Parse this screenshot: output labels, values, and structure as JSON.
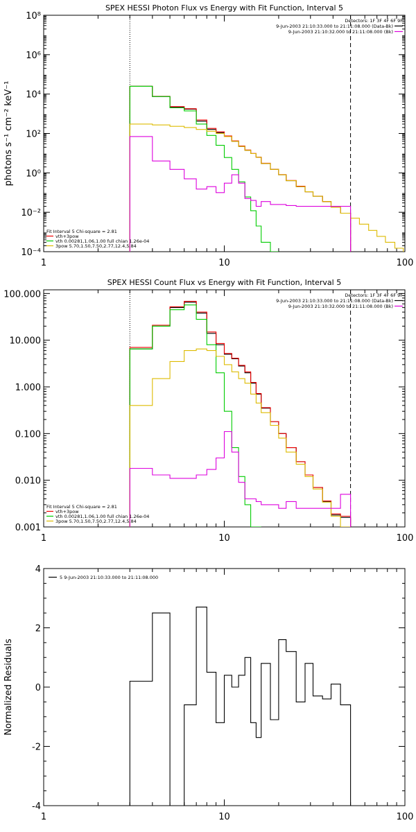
{
  "chart_data": [
    {
      "type": "line",
      "title": "SPEX HESSI Photon Flux vs Energy with Fit Function, Interval 5",
      "xlabel": "",
      "ylabel": "photons s⁻¹ cm⁻² keV⁻¹",
      "xscale": "log",
      "yscale": "log",
      "xlim": [
        1,
        100
      ],
      "ylim": [
        0.0001,
        100000000
      ],
      "xticks": [
        1,
        10,
        100
      ],
      "xtick_labels": [
        "1",
        "10",
        "100"
      ],
      "yticks": [
        0.0001,
        0.01,
        1,
        100,
        10000,
        1000000,
        100000000
      ],
      "ytick_labels": [
        "10⁻⁴",
        "10⁻²",
        "10⁰",
        "10²",
        "10⁴",
        "10⁶",
        "10⁸"
      ],
      "vlines": [
        {
          "x": 3,
          "style": "dotted"
        },
        {
          "x": 50,
          "style": "dashed"
        }
      ],
      "legend_top": {
        "header": "Detectors: 1F 3F 4F 6F 9F",
        "entries": [
          {
            "label": "9-Jun-2003 21:10:33.000 to 21:11:08.000 (Data-Bk)",
            "color": "#000000"
          },
          {
            "label": "9-Jun-2003 21:10:32.000 to 21:11:08.000 (Bk)",
            "color": "#dd00dd"
          }
        ]
      },
      "legend_bottom": {
        "header": "Fit Interval 5   Chi-square = 2.81",
        "entries": [
          {
            "label": "vth+3pow",
            "color": "#ee0000"
          },
          {
            "label": "vth 0.00281,1.06,1.00  full chian 1.26e-04",
            "color": "#00cc00"
          },
          {
            "label": "3pow 5.70,1.50,7.50,2.77,12.4,5.84",
            "color": "#ddbb00"
          }
        ]
      },
      "edges": [
        3,
        4,
        5,
        6,
        7,
        8,
        9,
        10,
        11,
        12,
        13,
        14,
        15,
        16,
        18,
        20,
        22,
        25,
        28,
        31,
        35,
        39,
        44,
        50,
        56,
        63,
        70,
        78,
        88,
        98
      ],
      "series": [
        {
          "color": "#000000",
          "values": [
            25000,
            7500,
            2200,
            1700,
            420,
            160,
            110,
            70,
            40,
            22,
            14,
            9.5,
            6.2,
            3,
            1.5,
            0.8,
            0.4,
            0.2,
            0.11,
            0.065,
            0.035,
            0.018,
            0.009,
            null,
            null,
            null,
            null,
            null,
            null
          ]
        },
        {
          "color": "#ee0000",
          "values": [
            25000,
            7700,
            2300,
            1800,
            480,
            180,
            120,
            75,
            42,
            23,
            14.5,
            9.7,
            6.3,
            3.1,
            1.5,
            0.82,
            0.41,
            0.21,
            0.11,
            0.066,
            0.035,
            0.018,
            0.009,
            null,
            null,
            null,
            null,
            null,
            null
          ]
        },
        {
          "color": "#00cc00",
          "values": [
            25000,
            7500,
            2000,
            1400,
            300,
            80,
            25,
            6,
            1.5,
            0.35,
            0.06,
            0.012,
            0.002,
            0.0003,
            5e-05,
            null,
            null,
            null,
            null,
            null,
            null,
            null,
            null,
            null,
            null,
            null,
            null,
            null,
            null
          ]
        },
        {
          "color": "#ddbb00",
          "values": [
            300,
            270,
            230,
            200,
            160,
            130,
            100,
            70,
            40,
            22,
            14,
            9.5,
            6.2,
            3,
            1.5,
            0.8,
            0.4,
            0.2,
            0.11,
            0.065,
            0.035,
            0.018,
            0.009,
            0.005,
            0.0025,
            0.0012,
            0.0006,
            0.0003,
            0.00015
          ]
        },
        {
          "color": "#dd00dd",
          "values": [
            70,
            4,
            1.5,
            0.5,
            0.15,
            0.2,
            0.1,
            0.3,
            0.8,
            0.3,
            0.05,
            0.04,
            0.02,
            0.035,
            0.025,
            0.025,
            0.022,
            0.02,
            0.02,
            0.02,
            0.02,
            0.02,
            0.02,
            null,
            null,
            null,
            null,
            null,
            null
          ]
        }
      ]
    },
    {
      "type": "line",
      "title": "SPEX HESSI Count Flux vs Energy with Fit Function, Interval 5",
      "xlabel": "",
      "ylabel": "",
      "xscale": "log",
      "yscale": "log",
      "xlim": [
        1,
        100
      ],
      "ylim": [
        0.001,
        120
      ],
      "xticks": [
        1,
        10,
        100
      ],
      "xtick_labels": [
        "1",
        "10",
        "100"
      ],
      "yticks": [
        0.001,
        0.01,
        0.1,
        1,
        10,
        100
      ],
      "ytick_labels": [
        "0.001",
        "0.010",
        "0.100",
        "1.000",
        "10.000",
        "100.000"
      ],
      "vlines": [
        {
          "x": 3,
          "style": "dotted"
        },
        {
          "x": 50,
          "style": "dashed"
        }
      ],
      "legend_top": {
        "header": "Detectors: 1F 3F 4F 6F 9F",
        "entries": [
          {
            "label": "9-Jun-2003 21:10:33.000 to 21:11:08.000 (Data-Bk)",
            "color": "#000000"
          },
          {
            "label": "9-Jun-2003 21:10:32.000 to 21:11:08.000 (Bk)",
            "color": "#dd00dd"
          }
        ]
      },
      "legend_bottom": {
        "header": "Fit Interval 5   Chi-square = 2.81",
        "entries": [
          {
            "label": "vth+3pow",
            "color": "#ee0000"
          },
          {
            "label": "vth 0.00281,1.06,1.00  full chian 1.26e-04",
            "color": "#00cc00"
          },
          {
            "label": "3pow 5.70,1.50,7.50,2.77,12.4,5.84",
            "color": "#ddbb00"
          }
        ]
      },
      "edges": [
        3,
        4,
        5,
        6,
        7,
        8,
        9,
        10,
        11,
        12,
        13,
        14,
        15,
        16,
        18,
        20,
        22,
        25,
        28,
        31,
        35,
        39,
        44,
        50
      ],
      "series": [
        {
          "color": "#000000",
          "values": [
            6.5,
            20,
            50,
            65,
            38,
            14,
            8,
            5,
            4,
            2.8,
            2,
            1.2,
            0.7,
            0.35,
            0.18,
            0.1,
            0.05,
            0.025,
            0.013,
            0.007,
            0.0035,
            0.0018,
            0.0016
          ]
        },
        {
          "color": "#ee0000",
          "values": [
            7,
            21,
            52,
            68,
            40,
            15,
            8.5,
            5.2,
            4.1,
            2.9,
            2.1,
            1.25,
            0.72,
            0.36,
            0.18,
            0.1,
            0.05,
            0.025,
            0.013,
            0.007,
            0.0036,
            0.0019,
            0.0017
          ]
        },
        {
          "color": "#00cc00",
          "values": [
            6.5,
            20,
            45,
            57,
            28,
            8,
            2,
            0.3,
            0.05,
            0.012,
            0.003,
            0.0008,
            0.0003,
            null,
            null,
            null,
            null,
            null,
            null,
            null,
            null,
            null,
            null
          ]
        },
        {
          "color": "#ddbb00",
          "values": [
            0.4,
            1.5,
            3.5,
            6,
            6.5,
            6,
            4.5,
            3,
            2.1,
            1.5,
            1.2,
            0.7,
            0.45,
            0.28,
            0.15,
            0.08,
            0.04,
            0.022,
            0.012,
            0.0065,
            0.0034,
            0.0017,
            0.0009
          ]
        },
        {
          "color": "#dd00dd",
          "values": [
            0.018,
            0.013,
            0.011,
            0.011,
            0.013,
            0.017,
            0.03,
            0.11,
            0.04,
            0.009,
            0.004,
            0.004,
            0.0035,
            0.003,
            0.003,
            0.0025,
            0.0035,
            0.0025,
            0.0025,
            0.0025,
            0.0025,
            0.0025,
            0.005
          ]
        }
      ]
    },
    {
      "type": "line",
      "title": "",
      "xlabel": "",
      "ylabel": "Normalized Residuals",
      "xscale": "log",
      "yscale": "linear",
      "xlim": [
        1,
        100
      ],
      "ylim": [
        -4,
        4
      ],
      "xticks": [
        1,
        10,
        100
      ],
      "xtick_labels": [
        "1",
        "10",
        "100"
      ],
      "yticks": [
        -4,
        -2,
        0,
        2,
        4
      ],
      "ytick_labels": [
        "-4",
        "-2",
        "0",
        "2",
        "4"
      ],
      "legend_top": {
        "header": "",
        "entries": [
          {
            "label": "5  9-Jun-2003 21:10:33.000 to 21:11:08.000",
            "color": "#000000"
          }
        ]
      },
      "edges": [
        3,
        4,
        5,
        6,
        7,
        8,
        9,
        10,
        11,
        12,
        13,
        14,
        15,
        16,
        18,
        20,
        22,
        25,
        28,
        31,
        35,
        39,
        44,
        50
      ],
      "series": [
        {
          "color": "#000000",
          "values": [
            0.2,
            2.5,
            -4,
            -0.6,
            2.7,
            0.5,
            -1.2,
            0.4,
            0,
            0.4,
            1,
            -1.2,
            -1.7,
            0.8,
            -1.1,
            1.6,
            1.2,
            -0.5,
            0.8,
            -0.3,
            -0.4,
            0.1,
            -0.6
          ]
        }
      ]
    }
  ]
}
